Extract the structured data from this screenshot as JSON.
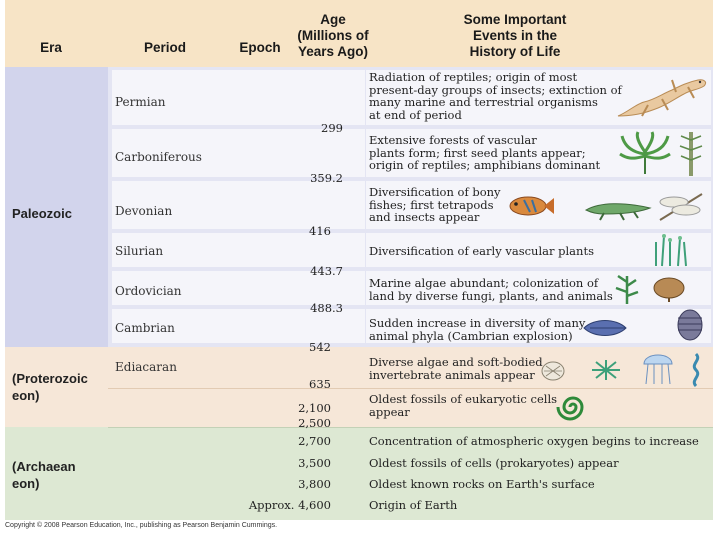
{
  "header": {
    "era": "Era",
    "period": "Period",
    "epoch": "Epoch",
    "age": [
      "Age",
      "(Millions of",
      "Years Ago)"
    ],
    "events": [
      "Some Important",
      "Events in the",
      "History of Life"
    ]
  },
  "eras": {
    "paleozoic": "Paleozoic",
    "proterozoic": [
      "(Proterozoic",
      "eon)"
    ],
    "archaean": [
      "(Archaean",
      "eon)"
    ]
  },
  "periods": {
    "permian": "Permian",
    "carboniferous": "Carboniferous",
    "devonian": "Devonian",
    "silurian": "Silurian",
    "ordovician": "Ordovician",
    "cambrian": "Cambrian",
    "ediacaran": "Ediacaran"
  },
  "ages": {
    "a299": "299",
    "a359": "359.2",
    "a416": "416",
    "a443": "443.7",
    "a488": "488.3",
    "a542": "542",
    "a635": "635",
    "a2100": "2,100",
    "a2500": "2,500",
    "a2700": "2,700",
    "a3500": "3,500",
    "a3800": "3,800",
    "a4600": "Approx. 4,600"
  },
  "events": {
    "permian": [
      "Radiation of reptiles; origin of most",
      "present-day groups of insects; extinction of",
      "many marine and terrestrial organisms",
      "at end of period"
    ],
    "carboniferous": [
      "Extensive forests of vascular",
      "plants form; first seed plants appear;",
      "origin of reptiles; amphibians dominant"
    ],
    "devonian": [
      "Diversification of bony",
      "fishes; first tetrapods",
      "and insects appear"
    ],
    "silurian": [
      "Diversification of early vascular plants"
    ],
    "ordovician": [
      "Marine algae abundant; colonization of",
      "land by diverse fungi, plants, and animals"
    ],
    "cambrian": [
      "Sudden increase in diversity of many",
      "animal phyla (Cambrian explosion)"
    ],
    "ediacaran": [
      "Diverse algae and soft-bodied",
      "invertebrate animals appear"
    ],
    "eukaryotic": [
      "Oldest fossils of eukaryotic cells",
      "appear"
    ],
    "oxygen": [
      "Concentration of atmospheric oxygen begins to increase"
    ],
    "prokaryotes": [
      "Oldest fossils of cells (prokaryotes) appear"
    ],
    "rocks": [
      "Oldest known rocks on Earth's surface"
    ],
    "origin": [
      "Origin of Earth"
    ]
  },
  "copyright": "Copyright © 2008 Pearson Education, Inc., publishing as Pearson Benjamin Cummings.",
  "colors": {
    "header": "#f7e4c6",
    "paleozoic": "#d2d4ec",
    "proterozoic": "#f6e7d8",
    "archaean": "#dde8d3"
  },
  "icons": [
    "lizard-icon",
    "fern-icon",
    "horsetail-icon",
    "fish-icon",
    "tetrapod-icon",
    "dragonfly-icon",
    "vascular-plant-icon",
    "algae-icon",
    "horseshoe-crab-icon",
    "anomalocaris-icon",
    "trilobite-icon",
    "jellyfish-icon",
    "dickinsonia-icon",
    "worm-icon",
    "spiral-cell-icon"
  ]
}
